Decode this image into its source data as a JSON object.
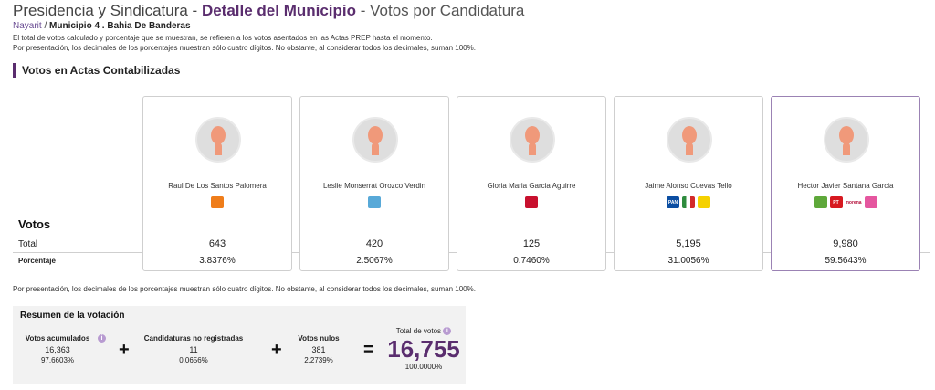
{
  "header": {
    "title_part1": "Presidencia y Sindicatura - ",
    "title_part2": "Detalle del Municipio",
    "title_part3": " - Votos por Candidatura",
    "breadcrumb_state": "Nayarit",
    "breadcrumb_sep": " / ",
    "breadcrumb_municipio": "Municipio 4 . Bahia De Banderas",
    "note1": "El total de votos calculado y porcentaje que se muestran, se refieren a los votos asentados en las Actas PREP hasta el momento.",
    "note2": "Por presentación, los decimales de los porcentajes muestran sólo cuatro dígitos. No obstante, al considerar todos los decimales, suman 100%."
  },
  "section_title": "Votos en Actas Contabilizadas",
  "row_labels": {
    "votos": "Votos",
    "total": "Total",
    "porcentaje": "Porcentaje"
  },
  "candidates": [
    {
      "name": "Raul De Los Santos Palomera",
      "total": "643",
      "pct": "3.8376%",
      "logos": [
        {
          "icon": "mc-logo",
          "color": "#ef7d1a",
          "text": ""
        }
      ]
    },
    {
      "name": "Leslie Monserrat Orozco Verdin",
      "total": "420",
      "pct": "2.5067%",
      "logos": [
        {
          "icon": "local-party-logo",
          "color": "#58a9d8",
          "text": ""
        }
      ]
    },
    {
      "name": "Gloria Maria Garcia Aguirre",
      "total": "125",
      "pct": "0.7460%",
      "logos": [
        {
          "icon": "fxm-logo",
          "color": "#c8102e",
          "text": ""
        }
      ]
    },
    {
      "name": "Jaime Alonso Cuevas Tello",
      "total": "5,195",
      "pct": "31.0056%",
      "logos": [
        {
          "icon": "pan-logo",
          "color": "#0b4ea2",
          "text": "PAN"
        },
        {
          "icon": "pri-logo",
          "color": "#e4e4e4",
          "text": ""
        },
        {
          "icon": "prd-logo",
          "color": "#f5d100",
          "text": ""
        }
      ]
    },
    {
      "name": "Hector Javier Santana Garcia",
      "total": "9,980",
      "pct": "59.5643%",
      "logos": [
        {
          "icon": "pvem-logo",
          "color": "#5ea83a",
          "text": ""
        },
        {
          "icon": "pt-logo",
          "color": "#d71920",
          "text": "PT"
        },
        {
          "icon": "morena-logo",
          "color": "#ffffff",
          "text": "morena"
        },
        {
          "icon": "local-coalition-logo",
          "color": "#e5569f",
          "text": ""
        }
      ]
    }
  ],
  "bottom_note": "Por presentación, los decimales de los porcentajes muestran sólo cuatro dígitos. No obstante, al considerar todos los decimales, suman 100%.",
  "summary": {
    "title": "Resumen de la votación",
    "acumulados": {
      "label": "Votos acumulados",
      "value": "16,363",
      "pct": "97.6603%"
    },
    "no_registradas": {
      "label": "Candidaturas no registradas",
      "value": "11",
      "pct": "0.0656%"
    },
    "nulos": {
      "label": "Votos nulos",
      "value": "381",
      "pct": "2.2739%"
    },
    "total": {
      "label": "Total de votos",
      "value": "16,755",
      "pct": "100.0000%"
    },
    "plus": "+",
    "equals": "="
  }
}
